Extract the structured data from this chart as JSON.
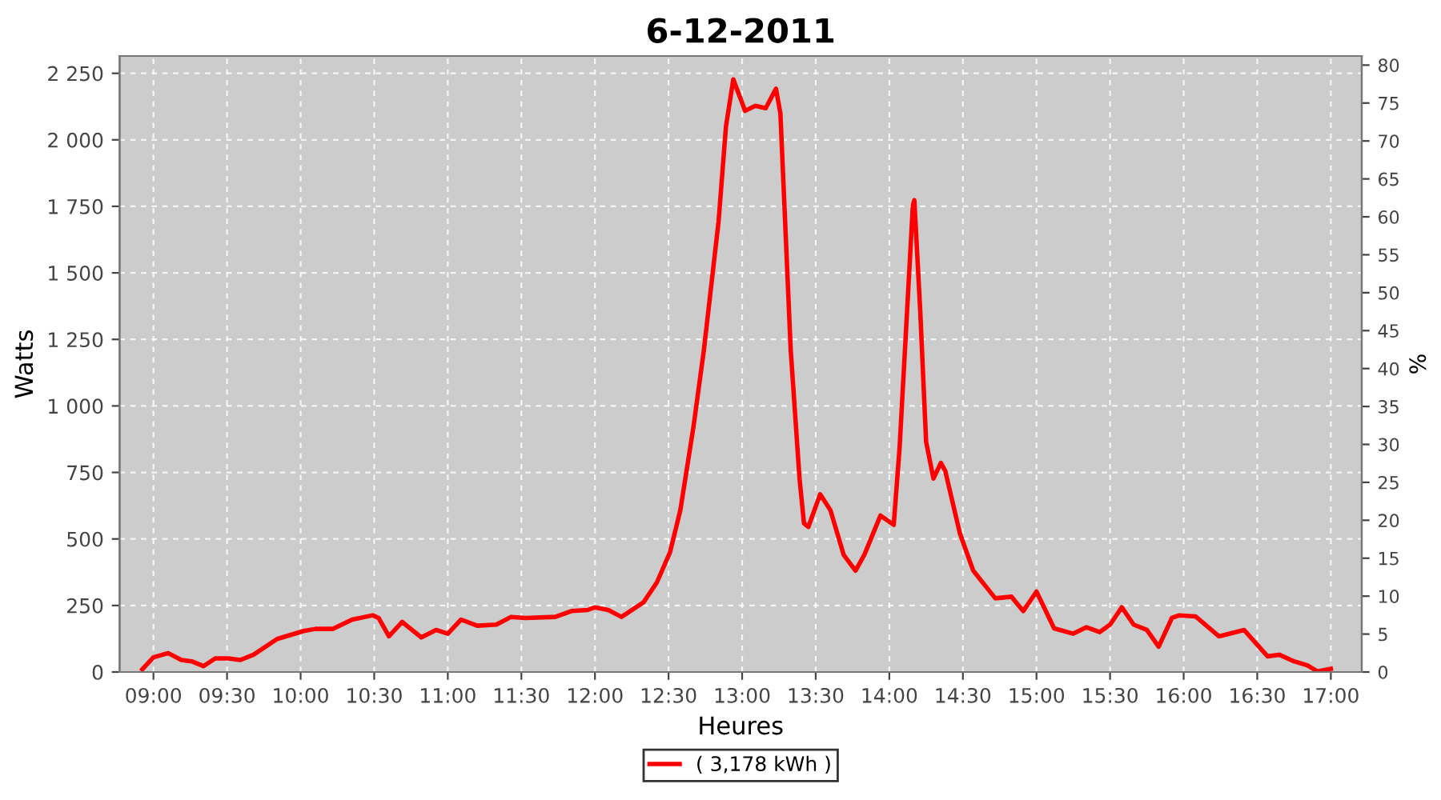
{
  "chart_data": {
    "type": "line",
    "title": "6-12-2011",
    "xlabel": "Heures",
    "ylabel": "Watts",
    "y2label": "%",
    "x": [
      8.924,
      9.0,
      9.1,
      9.19,
      9.26,
      9.34,
      9.42,
      9.51,
      9.59,
      9.68,
      9.84,
      10.02,
      10.1,
      10.22,
      10.35,
      10.49,
      10.53,
      10.6,
      10.69,
      10.82,
      10.92,
      11.0,
      11.09,
      11.2,
      11.33,
      11.43,
      11.53,
      11.73,
      11.84,
      11.95,
      12.0,
      12.09,
      12.18,
      12.33,
      12.42,
      12.51,
      12.58,
      12.67,
      12.74,
      12.84,
      12.89,
      12.94,
      13.02,
      13.09,
      13.16,
      13.23,
      13.26,
      13.33,
      13.39,
      13.42,
      13.45,
      13.53,
      13.6,
      13.69,
      13.77,
      13.83,
      13.94,
      14.03,
      14.07,
      14.16,
      14.17,
      14.21,
      14.25,
      14.3,
      14.35,
      14.38,
      14.48,
      14.57,
      14.72,
      14.83,
      14.91,
      15.0,
      15.12,
      15.25,
      15.34,
      15.43,
      15.5,
      15.58,
      15.66,
      15.75,
      15.83,
      15.92,
      15.97,
      16.08,
      16.24,
      16.41,
      16.57,
      16.65,
      16.75,
      16.84,
      16.91,
      17.0
    ],
    "series": [
      {
        "name": "( 3,178 kWh )",
        "color": "#ff0000",
        "values": [
          10,
          55,
          71,
          45,
          40,
          22,
          51,
          51,
          45,
          65,
          124,
          154,
          162,
          162,
          197,
          213,
          203,
          134,
          188,
          130,
          158,
          144,
          197,
          174,
          178,
          207,
          203,
          207,
          229,
          233,
          243,
          233,
          207,
          262,
          336,
          450,
          608,
          924,
          1210,
          1694,
          2050,
          2227,
          2109,
          2128,
          2119,
          2192,
          2099,
          1210,
          727,
          559,
          545,
          668,
          608,
          440,
          381,
          440,
          588,
          553,
          845,
          1753,
          1773,
          1358,
          865,
          727,
          786,
          756,
          520,
          381,
          277,
          283,
          229,
          302,
          164,
          144,
          168,
          150,
          178,
          243,
          178,
          158,
          95,
          203,
          213,
          209,
          134,
          158,
          59,
          65,
          40,
          25,
          2,
          12
        ]
      }
    ],
    "xlim": [
      8.77,
      17.21
    ],
    "xticks": [
      {
        "value": 9,
        "label": "09:00"
      },
      {
        "value": 9.5,
        "label": "09:30"
      },
      {
        "value": 10,
        "label": "10:00"
      },
      {
        "value": 10.5,
        "label": "10:30"
      },
      {
        "value": 11,
        "label": "11:00"
      },
      {
        "value": 11.5,
        "label": "11:30"
      },
      {
        "value": 12,
        "label": "12:00"
      },
      {
        "value": 12.5,
        "label": "12:30"
      },
      {
        "value": 13,
        "label": "13:00"
      },
      {
        "value": 13.5,
        "label": "13:30"
      },
      {
        "value": 14,
        "label": "14:00"
      },
      {
        "value": 14.5,
        "label": "14:30"
      },
      {
        "value": 15,
        "label": "15:00"
      },
      {
        "value": 15.5,
        "label": "15:30"
      },
      {
        "value": 16,
        "label": "16:00"
      },
      {
        "value": 16.5,
        "label": "16:30"
      },
      {
        "value": 17,
        "label": "17:00"
      }
    ],
    "ylim": [
      0,
      2315
    ],
    "yticks": [
      0,
      250,
      500,
      750,
      {
        "value": 1000,
        "label": "1 000"
      },
      {
        "value": 1250,
        "label": "1 250"
      },
      {
        "value": 1500,
        "label": "1 500"
      },
      {
        "value": 1750,
        "label": "1 750"
      },
      {
        "value": 2000,
        "label": "2 000"
      },
      {
        "value": 2250,
        "label": "2 250"
      }
    ],
    "y2lim": [
      0,
      81.2
    ],
    "y2ticks": [
      0,
      5,
      10,
      15,
      20,
      25,
      30,
      35,
      40,
      45,
      50,
      55,
      60,
      65,
      70,
      75,
      80
    ],
    "grid": true,
    "legend": "bottom",
    "marker": "none",
    "line_style": "solid"
  }
}
